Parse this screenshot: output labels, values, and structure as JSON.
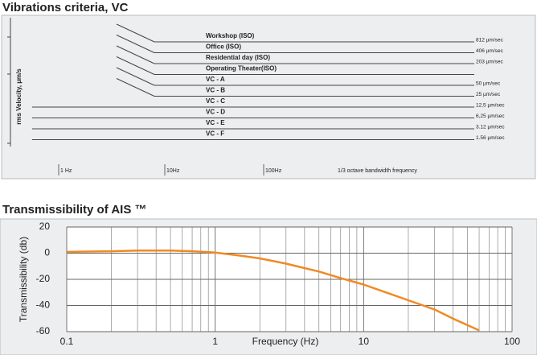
{
  "vibration_criteria": {
    "title": "Vibrations criteria, VC",
    "y_label": "rms Velocity, µm/s",
    "x_labels": [
      "1 Hz",
      "10Hz",
      "100Hz"
    ],
    "x_note": "1/3 octave bandwidth frequency",
    "levels": [
      {
        "name": "Workshop (ISO)",
        "value": "812 µm/sec"
      },
      {
        "name": "Office (ISO)",
        "value": "406 µm/sec"
      },
      {
        "name": "Residential day (ISO)",
        "value": "203 µm/sec"
      },
      {
        "name": "Operating Theater(ISO)",
        "value": null
      },
      {
        "name": "VC - A",
        "value": "50 µm/sec"
      },
      {
        "name": "VC - B",
        "value": "25 µm/sec"
      },
      {
        "name": "VC - C",
        "value": "12,5 µm/sec"
      },
      {
        "name": "VC - D",
        "value": "6,25 µm/sec"
      },
      {
        "name": "VC - E",
        "value": "3.12 µm/sec"
      },
      {
        "name": "VC - F",
        "value": "1.56 µm/sec"
      }
    ]
  },
  "chart_data": {
    "type": "line",
    "title": "Transmissibility of AIS ™",
    "x_label": "Frequency (Hz)",
    "y_label": "Transmissibility (db)",
    "x": [
      0.1,
      0.2,
      0.3,
      0.5,
      0.7,
      1,
      1.5,
      2,
      3,
      5,
      7,
      10,
      15,
      20,
      30,
      40,
      60
    ],
    "values": [
      1,
      1.5,
      2,
      2,
      1.5,
      0.5,
      -2,
      -4,
      -8,
      -14,
      -19,
      -24,
      -31,
      -36,
      -43,
      -50,
      -59
    ],
    "color": "#f08a24",
    "log_x": true,
    "grid": true,
    "xlim": [
      0.1,
      100
    ],
    "xticks": [
      0.1,
      1,
      10,
      100
    ],
    "ylim": [
      -60,
      20
    ],
    "yticks": [
      20,
      0,
      -20,
      -40,
      -60
    ]
  }
}
